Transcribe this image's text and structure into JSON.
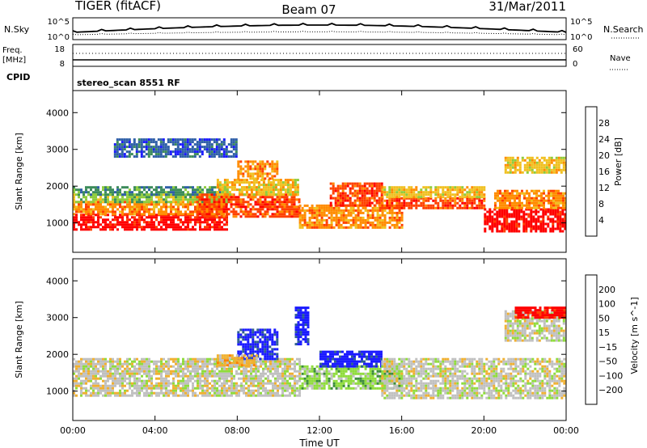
{
  "header": {
    "title_left": "TIGER (fitACF)",
    "title_center": "Beam 07",
    "title_right": "31/Mar/2011"
  },
  "panels": {
    "nsky": {
      "label": "N.Sky",
      "left_ticks": [
        "10^5",
        "10^0"
      ],
      "right_ticks": [
        "10^5",
        "10^0"
      ],
      "right_label": "N.Search"
    },
    "freq": {
      "label_line1": "Freq.",
      "label_line2": "[MHz]",
      "left_ticks": [
        "18",
        "8"
      ],
      "right_ticks": [
        "60",
        "0"
      ],
      "right_label": "Nave"
    },
    "cpid": {
      "label": "CPID",
      "text": "stereo_scan 8551 RF"
    }
  },
  "chart_data": [
    {
      "type": "heatmap",
      "title": "",
      "xlabel": "",
      "ylabel": "Slant Range [km]",
      "x_ticks": [
        "00:00",
        "04:00",
        "08:00",
        "12:00",
        "16:00",
        "20:00",
        "00:00"
      ],
      "y_ticks": [
        1000,
        2000,
        3000,
        4000
      ],
      "ylim": [
        200,
        4600
      ],
      "xlim_hours": [
        0,
        24
      ],
      "colorbar": {
        "label": "Power [dB]",
        "ticks": [
          "4",
          "8",
          "12",
          "16",
          "20",
          "24",
          "28"
        ],
        "colors": [
          "#1a1aff",
          "#2f5fa8",
          "#3c8c5a",
          "#8fcc3c",
          "#f0c020",
          "#ff8c00",
          "#ff4000",
          "#ff0000"
        ]
      },
      "regions": [
        {
          "t0": 0,
          "t1": 7.5,
          "r0": 800,
          "r1": 1250,
          "level": 7
        },
        {
          "t0": 0,
          "t1": 7.5,
          "r0": 1250,
          "r1": 1600,
          "level": 5
        },
        {
          "t0": 0,
          "t1": 7.5,
          "r0": 1600,
          "r1": 1800,
          "level": 3
        },
        {
          "t0": 0,
          "t1": 7.5,
          "r0": 1800,
          "r1": 2000,
          "level": 2
        },
        {
          "t0": 6,
          "t1": 11,
          "r0": 1200,
          "r1": 1800,
          "level": 6
        },
        {
          "t0": 7,
          "t1": 11,
          "r0": 1800,
          "r1": 2200,
          "level": 4
        },
        {
          "t0": 8,
          "t1": 10,
          "r0": 2200,
          "r1": 2700,
          "level": 5
        },
        {
          "t0": 11,
          "t1": 16,
          "r0": 900,
          "r1": 1500,
          "level": 5
        },
        {
          "t0": 12.5,
          "t1": 15,
          "r0": 1500,
          "r1": 2100,
          "level": 6
        },
        {
          "t0": 15,
          "t1": 20,
          "r0": 1400,
          "r1": 1700,
          "level": 6
        },
        {
          "t0": 15,
          "t1": 20,
          "r0": 1700,
          "r1": 2000,
          "level": 4
        },
        {
          "t0": 20,
          "t1": 24,
          "r0": 800,
          "r1": 1400,
          "level": 7
        },
        {
          "t0": 20.5,
          "t1": 24,
          "r0": 1400,
          "r1": 1900,
          "level": 5
        },
        {
          "t0": 21,
          "t1": 24,
          "r0": 2400,
          "r1": 2800,
          "level": 4
        },
        {
          "t0": 2,
          "t1": 8,
          "r0": 2800,
          "r1": 3300,
          "level": 1
        }
      ]
    },
    {
      "type": "heatmap",
      "title": "",
      "xlabel": "Time UT",
      "ylabel": "Slant Range [km]",
      "x_ticks": [
        "00:00",
        "04:00",
        "08:00",
        "12:00",
        "16:00",
        "20:00",
        "00:00"
      ],
      "y_ticks": [
        1000,
        2000,
        3000,
        4000
      ],
      "ylim": [
        200,
        4600
      ],
      "xlim_hours": [
        0,
        24
      ],
      "colorbar": {
        "label": "Velocity [m s^-1]",
        "ticks": [
          "200",
          "100",
          "50",
          "15",
          "−15",
          "−50",
          "−100",
          "−200"
        ],
        "colors": [
          "#1a1aff",
          "#2f6090",
          "#3c8c3c",
          "#8fdc3c",
          "#c0c0c0",
          "#f0b030",
          "#ff8000",
          "#ff4000",
          "#ff0000"
        ]
      },
      "regions": [
        {
          "t0": 0,
          "t1": 11,
          "r0": 900,
          "r1": 1900,
          "level": 4
        },
        {
          "t0": 11,
          "t1": 16,
          "r0": 1100,
          "r1": 1700,
          "level": 3
        },
        {
          "t0": 12,
          "t1": 15,
          "r0": 1700,
          "r1": 2100,
          "level": 0
        },
        {
          "t0": 15,
          "t1": 24,
          "r0": 800,
          "r1": 1900,
          "level": 4
        },
        {
          "t0": 8,
          "t1": 10,
          "r0": 1900,
          "r1": 2700,
          "level": 0
        },
        {
          "t0": 10.8,
          "t1": 11.5,
          "r0": 2300,
          "r1": 3300,
          "level": 0
        },
        {
          "t0": 21,
          "t1": 24,
          "r0": 2400,
          "r1": 3200,
          "level": 4
        },
        {
          "t0": 7,
          "t1": 9,
          "r0": 1700,
          "r1": 2000,
          "level": 5
        },
        {
          "t0": 21.5,
          "t1": 24,
          "r0": 3000,
          "r1": 3300,
          "level": 8
        }
      ]
    }
  ]
}
